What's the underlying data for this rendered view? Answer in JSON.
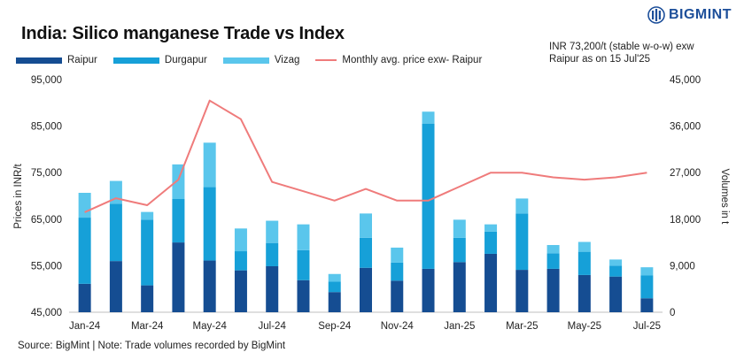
{
  "title": "India: Silico manganese Trade vs Index",
  "logo_text": "BIGMINT",
  "note_line1": "INR 73,200/t (stable w-o-w) exw",
  "note_line2": "Raipur as on 15 Jul'25",
  "source": "Source: BigMint | Note: Trade volumes recorded by BigMint",
  "colors": {
    "raipur": "#154d92",
    "durgapur": "#16a0d8",
    "vizag": "#5ac6ec",
    "price": "#ef7b7b"
  },
  "chart_data": {
    "type": "bar",
    "stacked": true,
    "title": "India: Silico manganese Trade vs Index",
    "categories": [
      "Jan-24",
      "Feb-24",
      "Mar-24",
      "Apr-24",
      "May-24",
      "Jun-24",
      "Jul-24",
      "Aug-24",
      "Sep-24",
      "Oct-24",
      "Nov-24",
      "Dec-24",
      "Jan-25",
      "Feb-25",
      "Mar-25",
      "Apr-25",
      "May-25",
      "Jun-25",
      "Jul-25"
    ],
    "x_tick_labels": [
      "Jan-24",
      "Mar-24",
      "May-24",
      "Jul-24",
      "Sep-24",
      "Nov-24",
      "Jan-25",
      "Mar-25",
      "May-25",
      "Jul-25"
    ],
    "series": [
      {
        "name": "Raipur",
        "axis": "right",
        "values": [
          5500,
          9900,
          5200,
          13500,
          10000,
          8100,
          8900,
          6200,
          3900,
          8600,
          6100,
          8400,
          9700,
          11300,
          8200,
          8400,
          7200,
          6900,
          2700
        ]
      },
      {
        "name": "Durgapur",
        "axis": "right",
        "values": [
          12800,
          11100,
          12700,
          8400,
          14200,
          3700,
          4500,
          5800,
          2000,
          5800,
          3500,
          28100,
          4700,
          4300,
          10900,
          3000,
          4500,
          2100,
          4400
        ]
      },
      {
        "name": "Vizag",
        "axis": "right",
        "values": [
          4800,
          4400,
          1500,
          6700,
          8600,
          4400,
          4300,
          5000,
          1500,
          4700,
          2900,
          2300,
          3500,
          1400,
          2900,
          1600,
          1900,
          1200,
          1600
        ]
      },
      {
        "name": "Monthly avg. price exw- Raipur",
        "type": "line",
        "axis": "left",
        "values": [
          66500,
          69500,
          68000,
          73500,
          90500,
          86500,
          73000,
          71000,
          69000,
          71500,
          69000,
          69000,
          72000,
          75000,
          75000,
          74000,
          73500,
          74000,
          75000
        ]
      }
    ],
    "ylabel": "Prices in INR/t",
    "ylim": [
      45000,
      95000
    ],
    "yticks": [
      "45,000",
      "55,000",
      "65,000",
      "75,000",
      "85,000",
      "95,000"
    ],
    "y2label": "Volumes in t",
    "y2lim": [
      0,
      45000
    ],
    "y2ticks": [
      "0",
      "9,000",
      "18,000",
      "27,000",
      "36,000",
      "45,000"
    ],
    "grid": false,
    "legend_position": "top-left"
  }
}
